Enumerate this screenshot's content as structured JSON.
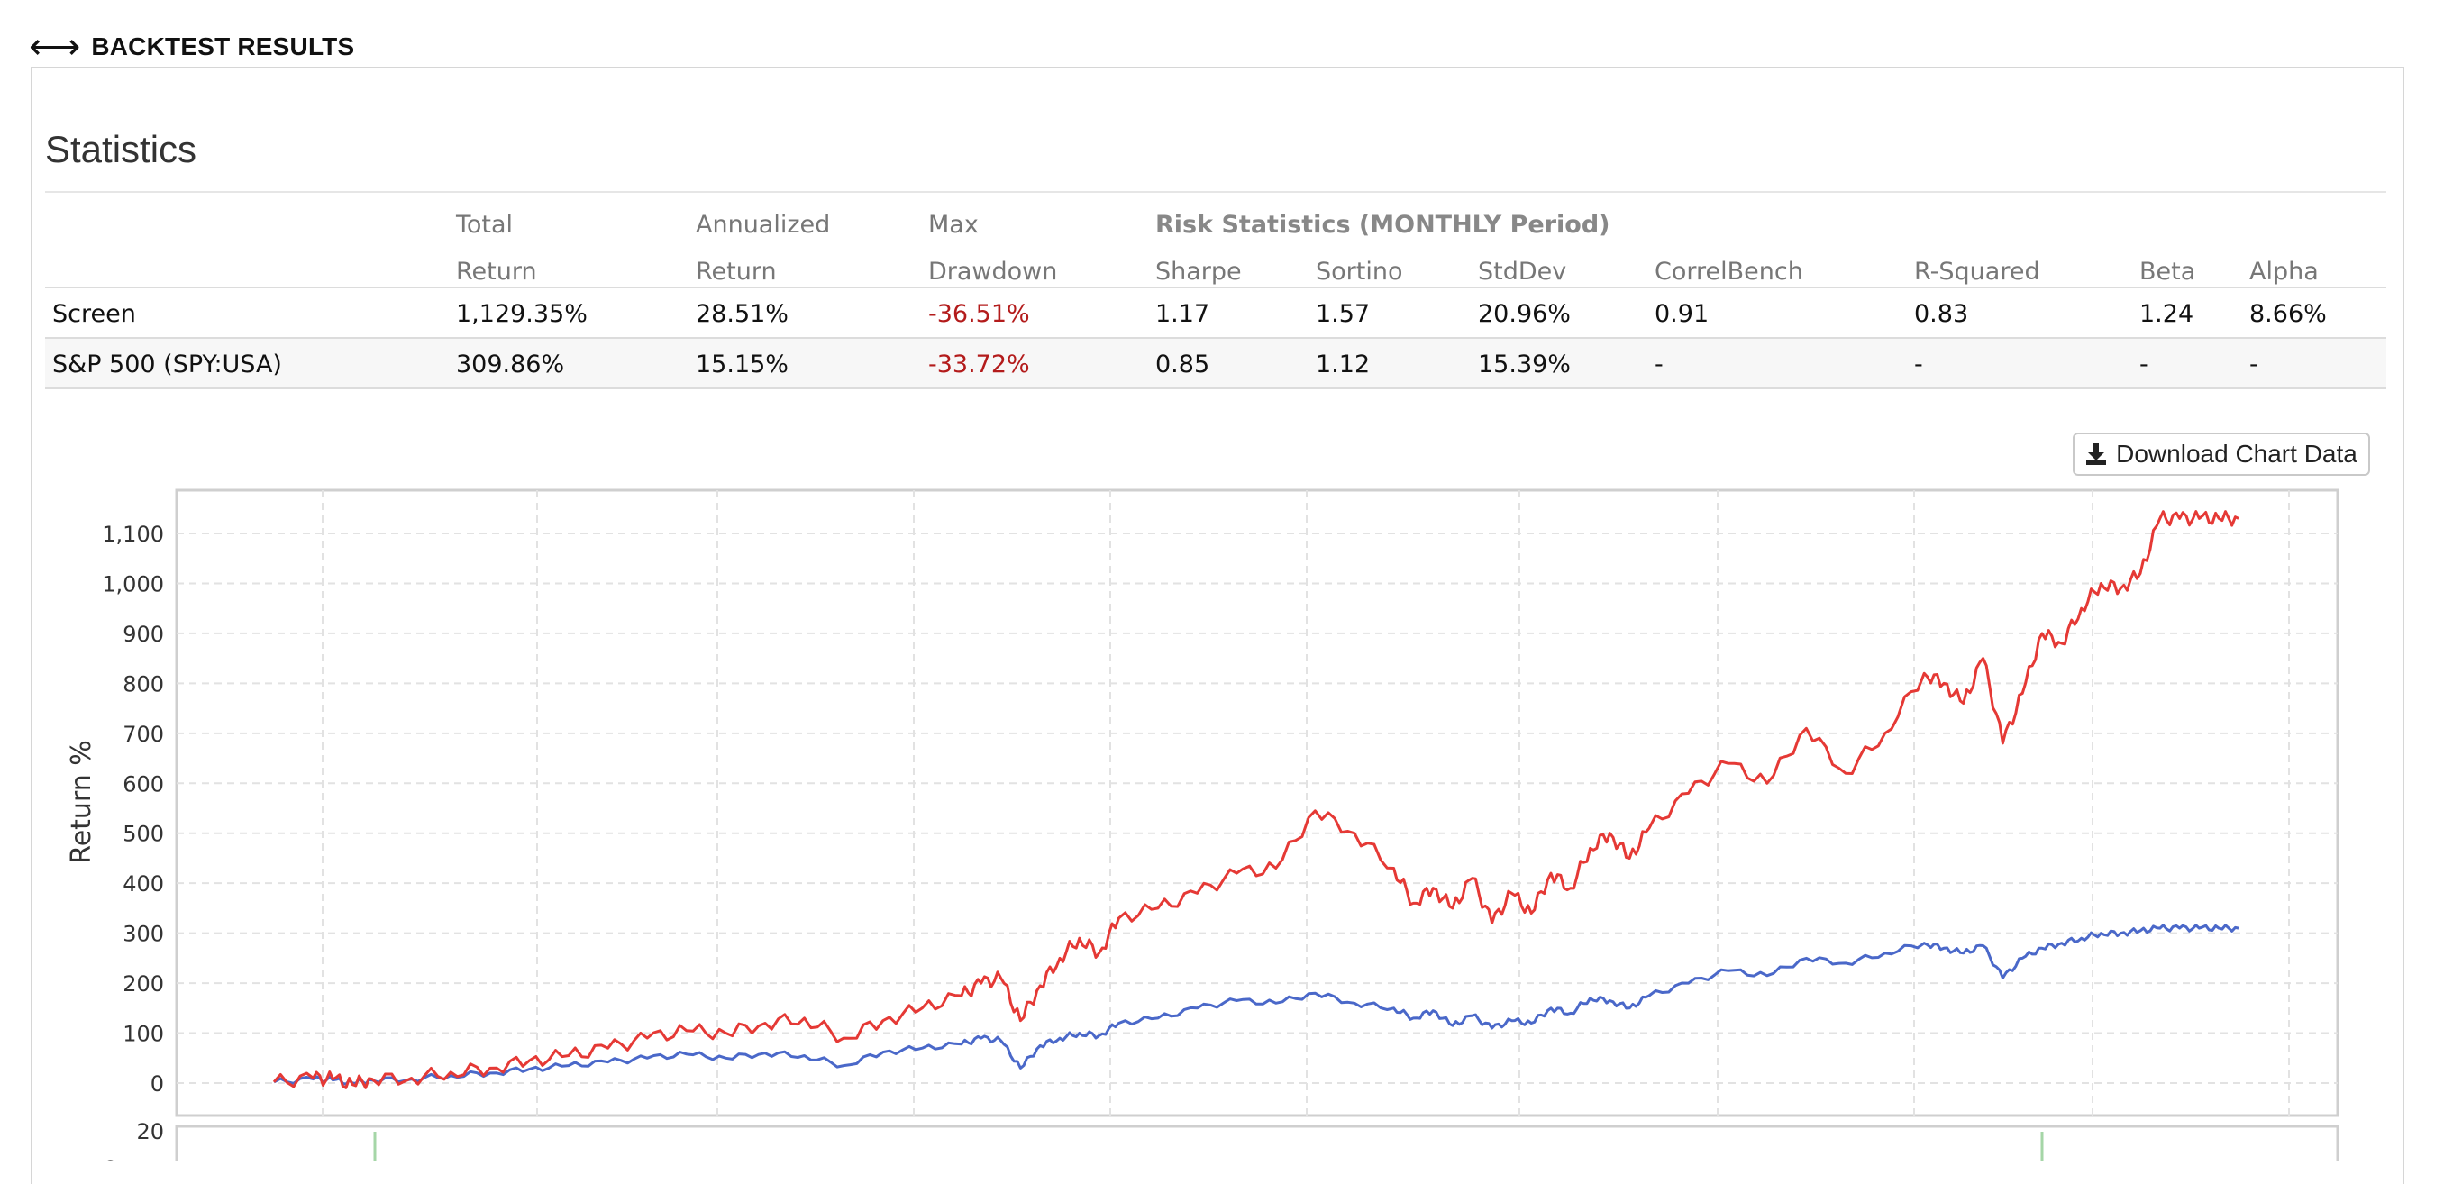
{
  "header": {
    "icon": "left-right-arrow-icon",
    "title": "BACKTEST RESULTS"
  },
  "section": {
    "title": "Statistics"
  },
  "table": {
    "header_row1": [
      "",
      "Total",
      "Annualized",
      "Max",
      "Risk Statistics (MONTHLY Period)"
    ],
    "header_row2": [
      "",
      "Return",
      "Return",
      "Drawdown",
      "Sharpe",
      "Sortino",
      "StdDev",
      "CorrelBench",
      "R-Squared",
      "Beta",
      "Alpha"
    ],
    "rows": [
      [
        "Screen",
        "1,129.35%",
        "28.51%",
        "-36.51%",
        "1.17",
        "1.57",
        "20.96%",
        "0.91",
        "0.83",
        "1.24",
        "8.66%"
      ],
      [
        "S&P 500 (SPY:USA)",
        "309.86%",
        "15.15%",
        "-33.72%",
        "0.85",
        "1.12",
        "15.39%",
        "-",
        "-",
        "-",
        "-"
      ]
    ]
  },
  "download_button": {
    "label": "Download Chart Data",
    "icon": "download-icon"
  },
  "colors": {
    "screen_series": "#e53935",
    "benchmark_series": "#4a68c9",
    "negative": "#b31b1b",
    "grid": "#e2e2e2",
    "lower_panel_marks": "#a5d6a7"
  },
  "chart_data": [
    {
      "type": "line",
      "ylabel": "Return %",
      "ylim": [
        -30,
        1180
      ],
      "yticks": [
        0,
        100,
        200,
        300,
        400,
        500,
        600,
        700,
        800,
        900,
        1000,
        1100
      ],
      "ytick_labels": [
        "0",
        "100",
        "200",
        "300",
        "400",
        "500",
        "600",
        "700",
        "800",
        "900",
        "1,000",
        "1,100"
      ],
      "x": [
        0,
        0.02,
        0.03,
        0.04,
        0.05,
        0.07,
        0.09,
        0.11,
        0.13,
        0.15,
        0.17,
        0.19,
        0.21,
        0.23,
        0.25,
        0.27,
        0.29,
        0.31,
        0.33,
        0.35,
        0.36,
        0.37,
        0.38,
        0.39,
        0.4,
        0.41,
        0.42,
        0.43,
        0.45,
        0.47,
        0.49,
        0.51,
        0.53,
        0.55,
        0.57,
        0.58,
        0.59,
        0.6,
        0.61,
        0.62,
        0.63,
        0.64,
        0.65,
        0.66,
        0.67,
        0.68,
        0.69,
        0.7,
        0.72,
        0.74,
        0.76,
        0.78,
        0.8,
        0.82,
        0.84,
        0.85,
        0.86,
        0.87,
        0.88,
        0.89,
        0.9,
        0.91,
        0.92,
        0.93,
        0.94,
        0.95,
        0.96,
        0.97,
        0.98,
        0.99,
        1.0
      ],
      "series": [
        {
          "values": [
            2,
            10,
            8,
            -3,
            8,
            10,
            22,
            30,
            45,
            55,
            70,
            90,
            105,
            100,
            120,
            130,
            90,
            125,
            150,
            175,
            200,
            210,
            125,
            195,
            250,
            290,
            260,
            330,
            350,
            380,
            420,
            430,
            545,
            500,
            430,
            360,
            390,
            350,
            410,
            320,
            380,
            340,
            420,
            390,
            470,
            500,
            450,
            510,
            580,
            640,
            600,
            710,
            620,
            700,
            820,
            800,
            760,
            850,
            680,
            780,
            900,
            880,
            950,
            1000,
            990,
            1020,
            1130,
            1130,
            1130,
            1130,
            1130
          ]
        },
        {
          "values": [
            2,
            8,
            6,
            0,
            6,
            8,
            15,
            20,
            28,
            35,
            42,
            50,
            58,
            50,
            60,
            55,
            35,
            62,
            70,
            78,
            90,
            85,
            30,
            75,
            90,
            100,
            95,
            120,
            130,
            150,
            165,
            160,
            180,
            160,
            150,
            130,
            145,
            115,
            135,
            110,
            125,
            120,
            150,
            140,
            170,
            165,
            150,
            175,
            200,
            225,
            215,
            250,
            240,
            260,
            280,
            270,
            260,
            275,
            210,
            250,
            270,
            280,
            290,
            300,
            300,
            305,
            310,
            310,
            310,
            310,
            310
          ]
        }
      ]
    },
    {
      "type": "bar",
      "ylabel": "%",
      "yticks": [
        20
      ],
      "ytick_labels": [
        "20"
      ]
    }
  ]
}
